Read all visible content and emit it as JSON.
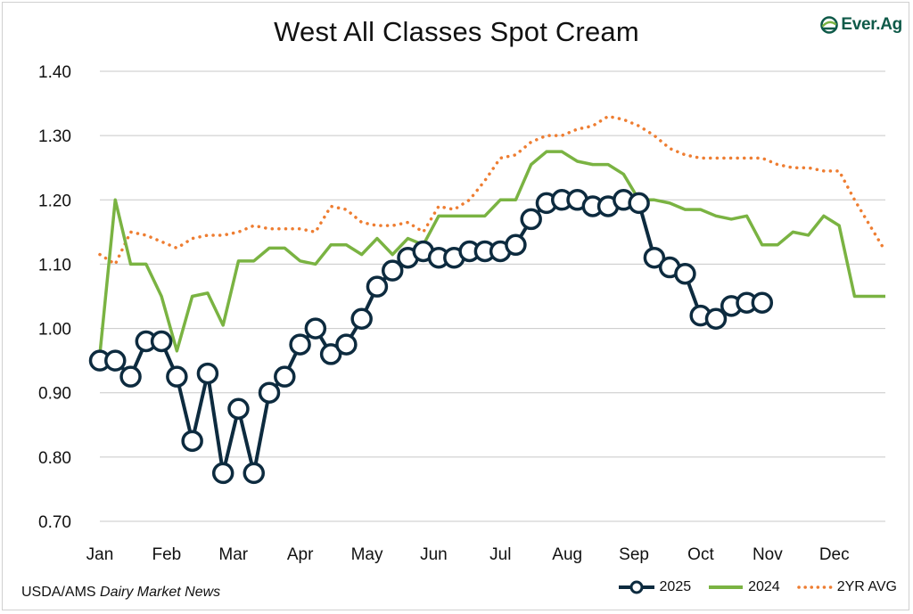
{
  "chart_data": {
    "type": "line",
    "title": "West All Classes Spot Cream",
    "xlabel": "",
    "ylabel": "",
    "ylim": [
      0.7,
      1.4
    ],
    "yticks": [
      "1.40",
      "1.30",
      "1.20",
      "1.10",
      "1.00",
      "0.90",
      "0.80",
      "0.70"
    ],
    "ytick_values": [
      1.4,
      1.3,
      1.2,
      1.1,
      1.0,
      0.9,
      0.8,
      0.7
    ],
    "x_categories": [
      "Jan",
      "Feb",
      "Mar",
      "Apr",
      "May",
      "Jun",
      "Jul",
      "Aug",
      "Sep",
      "Oct",
      "Nov",
      "Dec"
    ],
    "x_unit": "weeks since start of year",
    "xlim": [
      0,
      51
    ],
    "grid": "horizontal",
    "legend_position": "bottom-right",
    "series": [
      {
        "name": "2025",
        "style": "line-with-hollow-markers",
        "color": "#0d2b3f",
        "x": [
          0,
          1,
          2,
          3,
          4,
          5,
          6,
          7,
          8,
          9,
          10,
          11,
          12,
          13,
          14,
          15,
          16,
          17,
          18,
          19,
          20,
          21,
          22,
          23,
          24,
          25,
          26,
          27,
          28,
          29,
          30,
          31,
          32,
          33,
          34,
          35,
          36,
          37,
          38,
          39,
          40,
          41,
          42,
          43
        ],
        "values": [
          0.95,
          0.95,
          0.925,
          0.98,
          0.98,
          0.925,
          0.825,
          0.93,
          0.775,
          0.875,
          0.775,
          0.9,
          0.925,
          0.975,
          1.0,
          0.96,
          0.975,
          1.015,
          1.065,
          1.09,
          1.11,
          1.12,
          1.11,
          1.11,
          1.12,
          1.12,
          1.12,
          1.13,
          1.17,
          1.195,
          1.2,
          1.2,
          1.19,
          1.19,
          1.2,
          1.195,
          1.11,
          1.095,
          1.085,
          1.02,
          1.015,
          1.035,
          1.04,
          1.04
        ]
      },
      {
        "name": "2024",
        "style": "solid",
        "color": "#7ab342",
        "x": [
          0,
          1,
          2,
          3,
          4,
          5,
          6,
          7,
          8,
          9,
          10,
          11,
          12,
          13,
          14,
          15,
          16,
          17,
          18,
          19,
          20,
          21,
          22,
          23,
          24,
          25,
          26,
          27,
          28,
          29,
          30,
          31,
          32,
          33,
          34,
          35,
          36,
          37,
          38,
          39,
          40,
          41,
          42,
          43,
          44,
          45,
          46,
          47,
          48,
          49,
          50,
          51
        ],
        "values": [
          0.96,
          1.2,
          1.1,
          1.1,
          1.05,
          0.965,
          1.05,
          1.055,
          1.005,
          1.105,
          1.105,
          1.125,
          1.125,
          1.105,
          1.1,
          1.13,
          1.13,
          1.115,
          1.14,
          1.115,
          1.14,
          1.13,
          1.175,
          1.175,
          1.175,
          1.175,
          1.2,
          1.2,
          1.255,
          1.275,
          1.275,
          1.26,
          1.255,
          1.255,
          1.24,
          1.2,
          1.2,
          1.195,
          1.185,
          1.185,
          1.175,
          1.17,
          1.175,
          1.13,
          1.13,
          1.15,
          1.145,
          1.175,
          1.16,
          1.05,
          1.05,
          1.05
        ]
      },
      {
        "name": "2YR AVG",
        "style": "dotted",
        "color": "#ee7d31",
        "x": [
          0,
          1,
          2,
          3,
          4,
          5,
          6,
          7,
          8,
          9,
          10,
          11,
          12,
          13,
          14,
          15,
          16,
          17,
          18,
          19,
          20,
          21,
          22,
          23,
          24,
          25,
          26,
          27,
          28,
          29,
          30,
          31,
          32,
          33,
          34,
          35,
          36,
          37,
          38,
          39,
          40,
          41,
          42,
          43,
          44,
          45,
          46,
          47,
          48,
          49,
          50,
          51
        ],
        "values": [
          1.115,
          1.1,
          1.15,
          1.145,
          1.135,
          1.125,
          1.14,
          1.145,
          1.145,
          1.15,
          1.16,
          1.155,
          1.155,
          1.155,
          1.15,
          1.19,
          1.185,
          1.165,
          1.16,
          1.16,
          1.165,
          1.15,
          1.19,
          1.185,
          1.2,
          1.23,
          1.265,
          1.27,
          1.29,
          1.3,
          1.3,
          1.31,
          1.315,
          1.33,
          1.325,
          1.315,
          1.3,
          1.28,
          1.27,
          1.265,
          1.265,
          1.265,
          1.265,
          1.265,
          1.255,
          1.25,
          1.25,
          1.245,
          1.245,
          1.2,
          1.16,
          1.12
        ]
      }
    ]
  },
  "brand": {
    "name": "Ever.Ag",
    "color": "#0f5a49",
    "accent": "#7ab342"
  },
  "source": {
    "prefix": "USDA/AMS ",
    "italic": "Dairy Market News"
  },
  "legend": {
    "items": [
      {
        "label": "2025",
        "color": "#0d2b3f"
      },
      {
        "label": "2024",
        "color": "#7ab342"
      },
      {
        "label": "2YR AVG",
        "color": "#ee7d31"
      }
    ]
  }
}
